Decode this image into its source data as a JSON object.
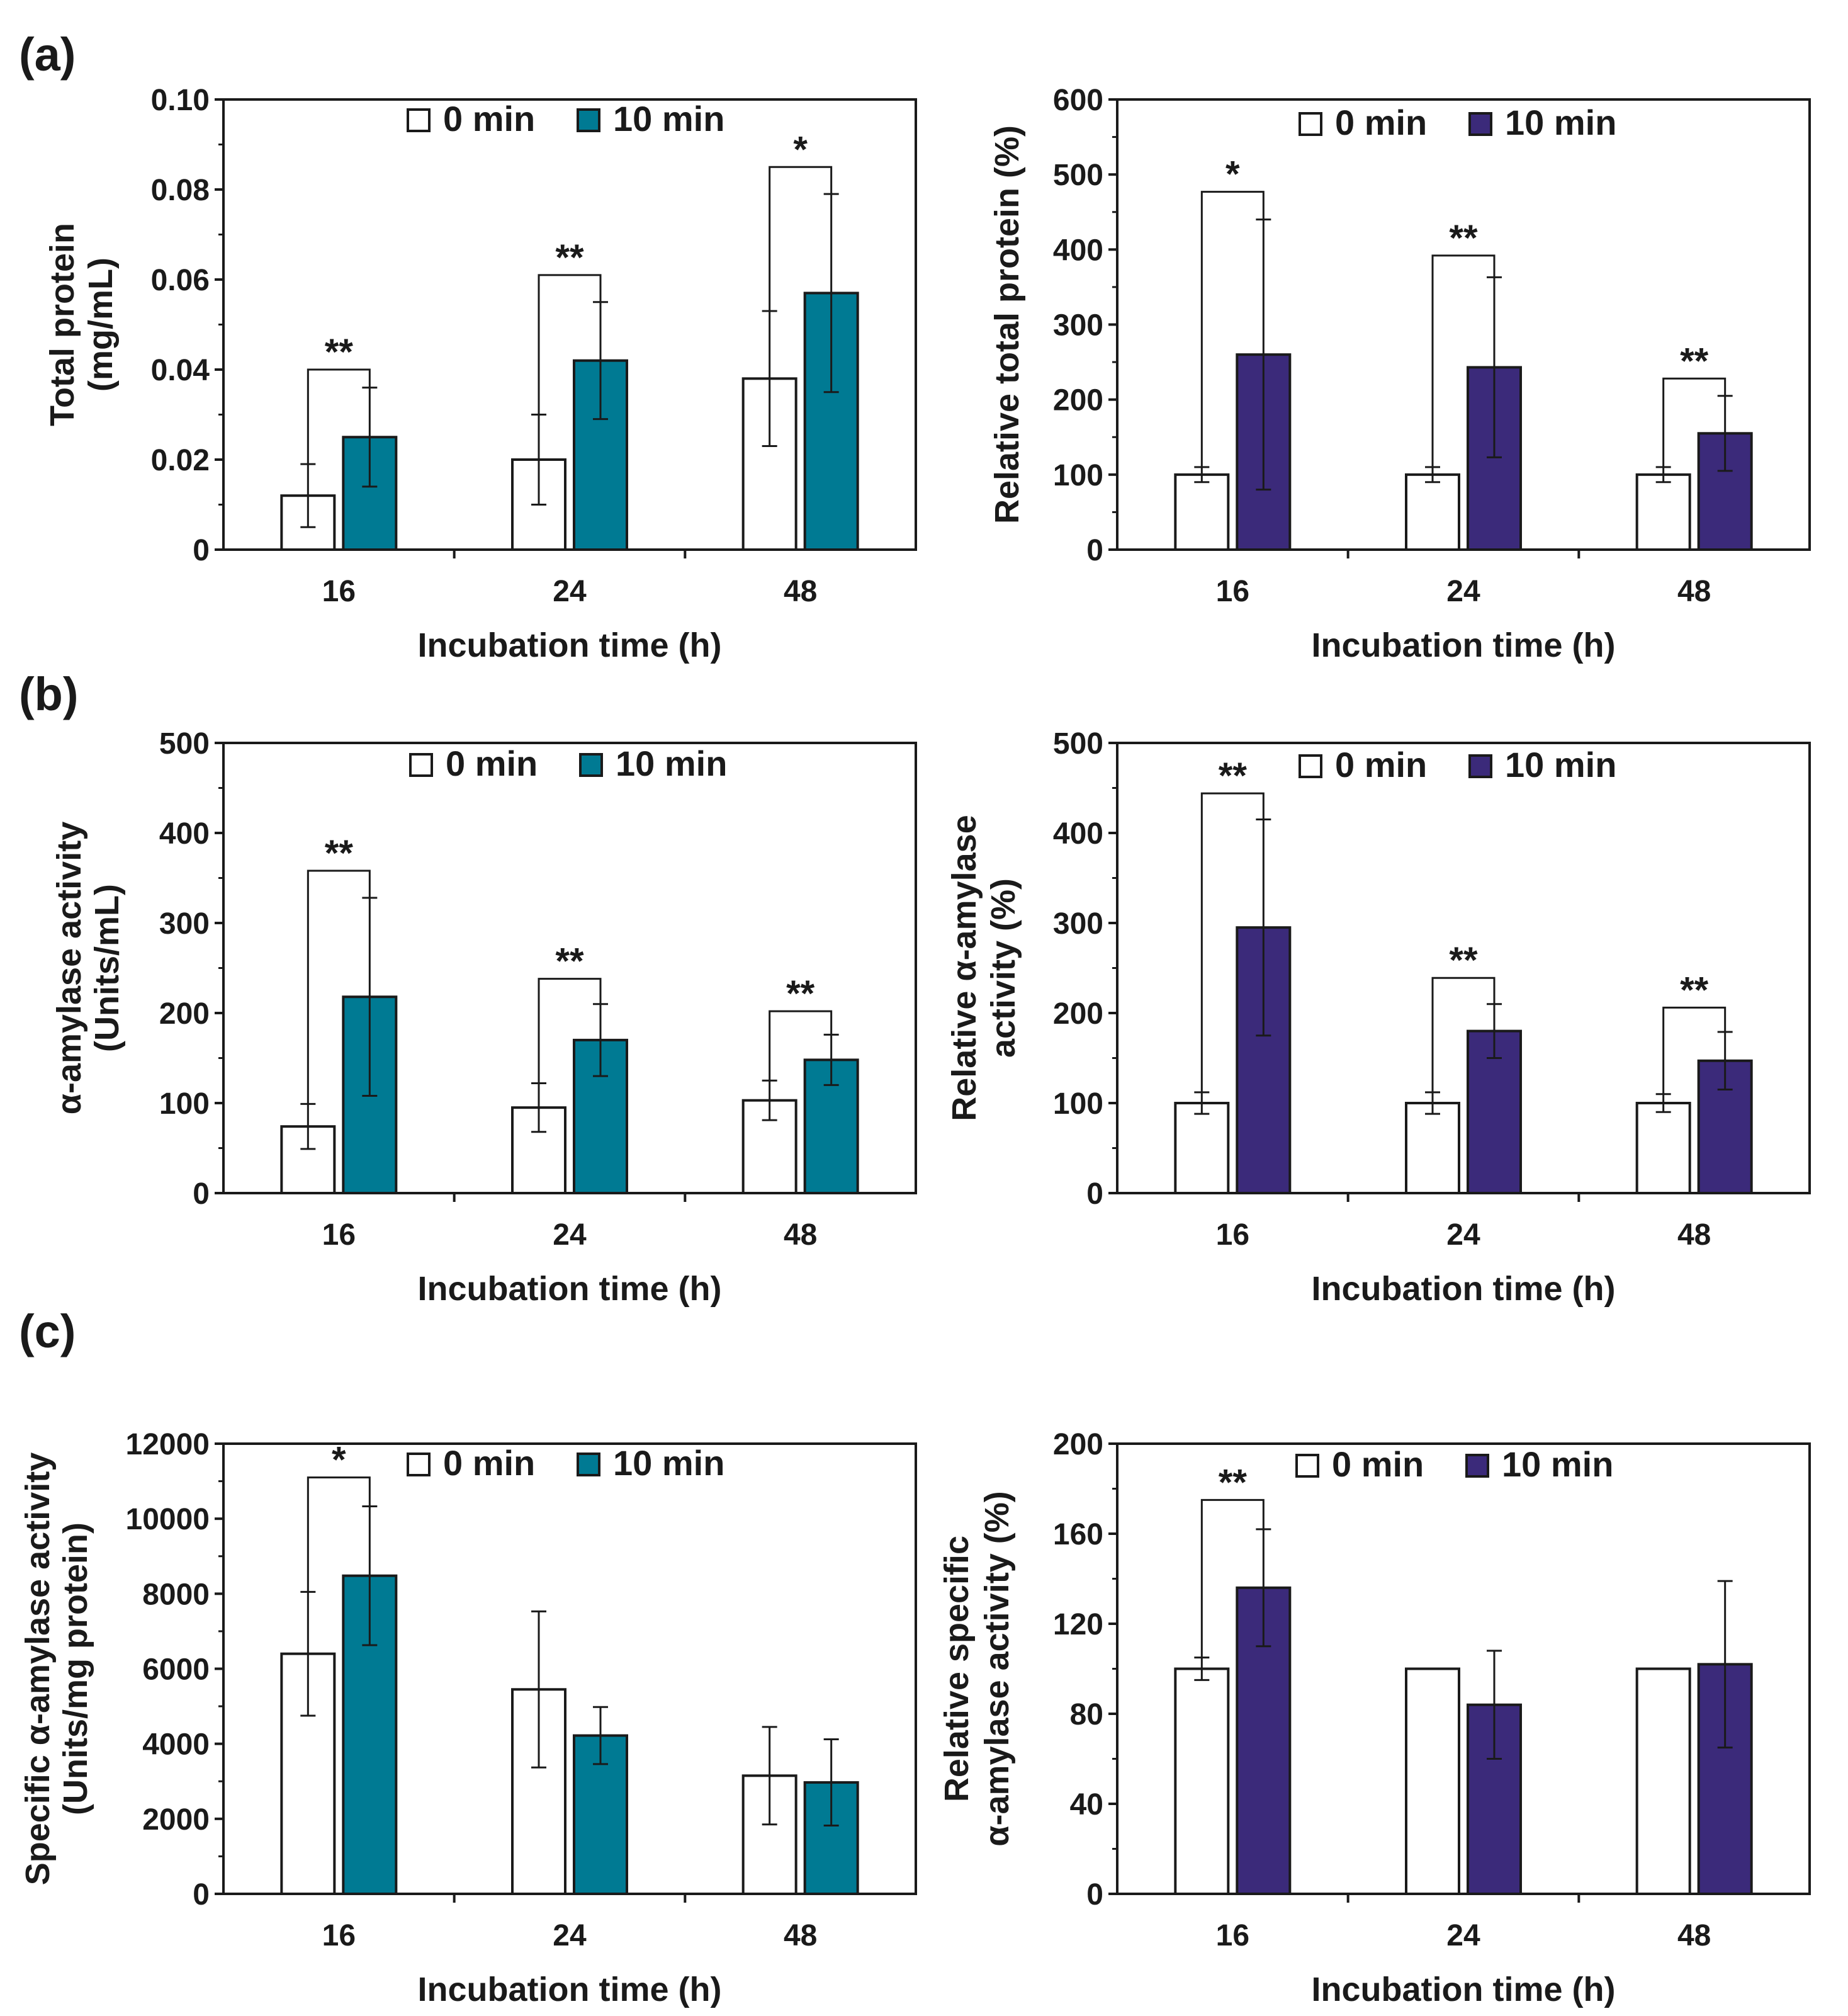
{
  "figure": {
    "colors": {
      "teal": "#007A93",
      "purple": "#3B2A7A",
      "white": "#FFFFFF",
      "axis": "#1A1A1A"
    }
  },
  "chart_data": [
    {
      "panel": "(a)",
      "type": "bar",
      "categories": [
        "16",
        "24",
        "48"
      ],
      "series": [
        {
          "name": "0 min",
          "color": "#FFFFFF",
          "values": [
            0.012,
            0.02,
            0.038
          ],
          "err": [
            0.007,
            0.01,
            0.015
          ]
        },
        {
          "name": "10 min",
          "color": "#007A93",
          "values": [
            0.025,
            0.042,
            0.057
          ],
          "err": [
            0.011,
            0.013,
            0.022
          ]
        }
      ],
      "xlabel": "Incubation time (h)",
      "ylabel": [
        "Total protein",
        "(mg/mL)"
      ],
      "ylim": [
        0,
        0.1
      ],
      "yticks": [
        "0",
        "0.02",
        "0.04",
        "0.06",
        "0.08",
        "0.10"
      ],
      "significance": [
        {
          "category": "16",
          "label": "**",
          "level": 0.04
        },
        {
          "category": "24",
          "label": "**",
          "level": 0.061
        },
        {
          "category": "48",
          "label": "*",
          "level": 0.085
        }
      ],
      "legend": "top-center"
    },
    {
      "type": "bar",
      "categories": [
        "16",
        "24",
        "48"
      ],
      "series": [
        {
          "name": "0 min",
          "color": "#FFFFFF",
          "values": [
            100,
            100,
            100
          ],
          "err": [
            10,
            10,
            10
          ]
        },
        {
          "name": "10 min",
          "color": "#3B2A7A",
          "values": [
            260,
            243,
            155
          ],
          "err": [
            180,
            120,
            50
          ]
        }
      ],
      "xlabel": "Incubation time (h)",
      "ylabel": [
        "Relative total protein (%)"
      ],
      "ylim": [
        0,
        600
      ],
      "yticks": [
        "0",
        "100",
        "200",
        "300",
        "400",
        "500",
        "600"
      ],
      "significance": [
        {
          "category": "16",
          "label": "*",
          "level": 477
        },
        {
          "category": "24",
          "label": "**",
          "level": 392
        },
        {
          "category": "48",
          "label": "**",
          "level": 228
        }
      ],
      "legend": "top-center"
    },
    {
      "panel": "(b)",
      "type": "bar",
      "categories": [
        "16",
        "24",
        "48"
      ],
      "series": [
        {
          "name": "0 min",
          "color": "#FFFFFF",
          "values": [
            74,
            95,
            103
          ],
          "err": [
            25,
            27,
            22
          ]
        },
        {
          "name": "10 min",
          "color": "#007A93",
          "values": [
            218,
            170,
            148
          ],
          "err": [
            110,
            40,
            28
          ]
        }
      ],
      "xlabel": "Incubation time (h)",
      "ylabel": [
        "α-amylase activity",
        "(Units/mL)"
      ],
      "ylim": [
        0,
        500
      ],
      "yticks": [
        "0",
        "100",
        "200",
        "300",
        "400",
        "500"
      ],
      "significance": [
        {
          "category": "16",
          "label": "**",
          "level": 358
        },
        {
          "category": "24",
          "label": "**",
          "level": 238
        },
        {
          "category": "48",
          "label": "**",
          "level": 202
        }
      ],
      "legend": "top-center"
    },
    {
      "type": "bar",
      "categories": [
        "16",
        "24",
        "48"
      ],
      "series": [
        {
          "name": "0 min",
          "color": "#FFFFFF",
          "values": [
            100,
            100,
            100
          ],
          "err": [
            12,
            12,
            10
          ]
        },
        {
          "name": "10 min",
          "color": "#3B2A7A",
          "values": [
            295,
            180,
            147
          ],
          "err": [
            120,
            30,
            32
          ]
        }
      ],
      "xlabel": "Incubation time (h)",
      "ylabel": [
        "Relative α-amylase",
        "activity (%)"
      ],
      "ylim": [
        0,
        500
      ],
      "yticks": [
        "0",
        "100",
        "200",
        "300",
        "400",
        "500"
      ],
      "significance": [
        {
          "category": "16",
          "label": "**",
          "level": 444
        },
        {
          "category": "24",
          "label": "**",
          "level": 239
        },
        {
          "category": "48",
          "label": "**",
          "level": 206
        }
      ],
      "legend": "top-center"
    },
    {
      "panel": "(c)",
      "type": "bar",
      "categories": [
        "16",
        "24",
        "48"
      ],
      "series": [
        {
          "name": "0 min",
          "color": "#FFFFFF",
          "values": [
            6400,
            5450,
            3150
          ],
          "err": [
            1650,
            2080,
            1300
          ]
        },
        {
          "name": "10 min",
          "color": "#007A93",
          "values": [
            8480,
            4220,
            2970
          ],
          "err": [
            1850,
            760,
            1150
          ]
        }
      ],
      "xlabel": "Incubation time (h)",
      "ylabel": [
        "Specific α-amylase activity",
        "(Units/mg protein)"
      ],
      "ylim": [
        0,
        12000
      ],
      "yticks": [
        "0",
        "2000",
        "4000",
        "6000",
        "8000",
        "10000",
        "12000"
      ],
      "significance": [
        {
          "category": "16",
          "label": "*",
          "level": 11100
        }
      ],
      "legend": "top-center"
    },
    {
      "type": "bar",
      "categories": [
        "16",
        "24",
        "48"
      ],
      "series": [
        {
          "name": "0 min",
          "color": "#FFFFFF",
          "values": [
            100,
            100,
            100
          ],
          "err": [
            5,
            0,
            0
          ]
        },
        {
          "name": "10 min",
          "color": "#3B2A7A",
          "values": [
            136,
            84,
            102
          ],
          "err": [
            26,
            24,
            37
          ]
        }
      ],
      "xlabel": "Incubation time (h)",
      "ylabel": [
        "Relative specific",
        "α-amylase activity (%)"
      ],
      "ylim": [
        0,
        200
      ],
      "yticks": [
        "0",
        "40",
        "80",
        "120",
        "160",
        "200"
      ],
      "significance": [
        {
          "category": "16",
          "label": "**",
          "level": 175
        }
      ],
      "legend": "top-center"
    }
  ]
}
